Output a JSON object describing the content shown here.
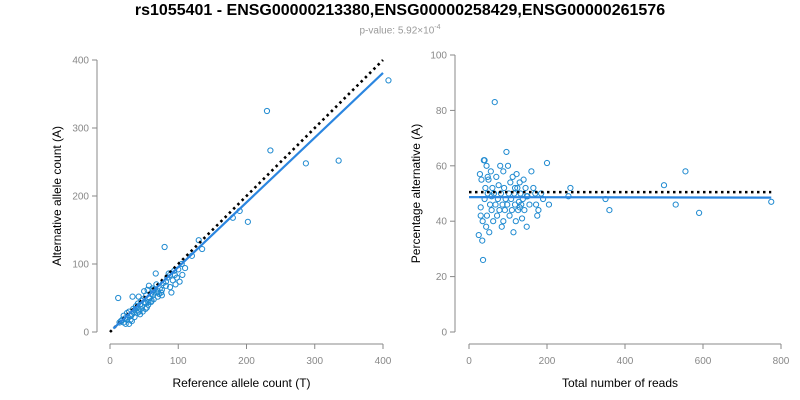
{
  "title": "rs1055401 - ENSG00000213380,ENSG00000258429,ENSG00000261576",
  "subtitle": {
    "prefix": "p-value: 5.92×10",
    "exponent": "-4"
  },
  "colors": {
    "points": "#1f8ad0",
    "fit": "#2b86e0",
    "reference_line": "#000000",
    "axis": "#888888"
  },
  "chart_data": [
    {
      "type": "scatter",
      "xlabel": "Reference allele count (T)",
      "ylabel": "Alternative allele count (A)",
      "xlim": [
        0,
        400
      ],
      "ylim": [
        0,
        400
      ],
      "xticks": [
        0,
        100,
        200,
        300,
        400
      ],
      "yticks": [
        0,
        100,
        200,
        300,
        400
      ],
      "fit_line": {
        "from": [
          5,
          5
        ],
        "to": [
          400,
          381
        ]
      },
      "reference_line": {
        "from": [
          0,
          0
        ],
        "to": [
          400,
          400
        ]
      },
      "points": [
        [
          12,
          50
        ],
        [
          14,
          14
        ],
        [
          16,
          16
        ],
        [
          18,
          18
        ],
        [
          20,
          24
        ],
        [
          22,
          20
        ],
        [
          23,
          12
        ],
        [
          25,
          28
        ],
        [
          26,
          22
        ],
        [
          28,
          30
        ],
        [
          30,
          18
        ],
        [
          31,
          24
        ],
        [
          32,
          26
        ],
        [
          33,
          52
        ],
        [
          34,
          34
        ],
        [
          35,
          28
        ],
        [
          36,
          32
        ],
        [
          38,
          38
        ],
        [
          40,
          36
        ],
        [
          41,
          42
        ],
        [
          42,
          52
        ],
        [
          43,
          30
        ],
        [
          44,
          40
        ],
        [
          45,
          34
        ],
        [
          46,
          46
        ],
        [
          47,
          38
        ],
        [
          48,
          48
        ],
        [
          50,
          60
        ],
        [
          51,
          44
        ],
        [
          52,
          42
        ],
        [
          53,
          54
        ],
        [
          54,
          36
        ],
        [
          55,
          62
        ],
        [
          56,
          44
        ],
        [
          57,
          68
        ],
        [
          58,
          50
        ],
        [
          60,
          56
        ],
        [
          61,
          46
        ],
        [
          62,
          64
        ],
        [
          63,
          54
        ],
        [
          64,
          62
        ],
        [
          65,
          58
        ],
        [
          67,
          86
        ],
        [
          68,
          70
        ],
        [
          69,
          58
        ],
        [
          70,
          52
        ],
        [
          72,
          56
        ],
        [
          73,
          64
        ],
        [
          75,
          58
        ],
        [
          76,
          62
        ],
        [
          78,
          72
        ],
        [
          80,
          125
        ],
        [
          82,
          68
        ],
        [
          84,
          80
        ],
        [
          86,
          86
        ],
        [
          88,
          84
        ],
        [
          90,
          58
        ],
        [
          92,
          76
        ],
        [
          94,
          90
        ],
        [
          96,
          70
        ],
        [
          98,
          80
        ],
        [
          100,
          92
        ],
        [
          102,
          74
        ],
        [
          106,
          84
        ],
        [
          110,
          94
        ],
        [
          120,
          112
        ],
        [
          130,
          135
        ],
        [
          135,
          122
        ],
        [
          180,
          168
        ],
        [
          190,
          178
        ],
        [
          202,
          162
        ],
        [
          230,
          325
        ],
        [
          235,
          267
        ],
        [
          287,
          248
        ],
        [
          335,
          252
        ],
        [
          408,
          370
        ],
        [
          20,
          14
        ],
        [
          25,
          18
        ],
        [
          28,
          12
        ],
        [
          32,
          16
        ],
        [
          36,
          22
        ],
        [
          40,
          28
        ],
        [
          44,
          26
        ],
        [
          48,
          30
        ],
        [
          52,
          34
        ],
        [
          56,
          40
        ],
        [
          60,
          44
        ],
        [
          64,
          48
        ],
        [
          70,
          60
        ],
        [
          76,
          54
        ],
        [
          82,
          74
        ],
        [
          88,
          66
        ],
        [
          95,
          84
        ],
        [
          105,
          100
        ]
      ]
    },
    {
      "type": "scatter",
      "xlabel": "Total number of reads",
      "ylabel": "Percentage alternative (A)",
      "xlim": [
        0,
        800
      ],
      "ylim": [
        0,
        100
      ],
      "xticks": [
        0,
        200,
        400,
        600,
        800
      ],
      "yticks": [
        0,
        20,
        40,
        60,
        80,
        100
      ],
      "fit_line": {
        "from": [
          0,
          48.7
        ],
        "to": [
          775,
          48.5
        ]
      },
      "reference_line": {
        "from": [
          0,
          50.5
        ],
        "to": [
          775,
          50.5
        ]
      },
      "points": [
        [
          25,
          35
        ],
        [
          28,
          57
        ],
        [
          30,
          45
        ],
        [
          32,
          55
        ],
        [
          34,
          33
        ],
        [
          35,
          40
        ],
        [
          36,
          26
        ],
        [
          38,
          62
        ],
        [
          40,
          48
        ],
        [
          40,
          62
        ],
        [
          42,
          52
        ],
        [
          44,
          38
        ],
        [
          45,
          60
        ],
        [
          46,
          42
        ],
        [
          48,
          50
        ],
        [
          50,
          55
        ],
        [
          52,
          36
        ],
        [
          54,
          46
        ],
        [
          56,
          58
        ],
        [
          58,
          44
        ],
        [
          60,
          52
        ],
        [
          62,
          40
        ],
        [
          64,
          50
        ],
        [
          66,
          83
        ],
        [
          68,
          46
        ],
        [
          70,
          56
        ],
        [
          72,
          42
        ],
        [
          74,
          48
        ],
        [
          76,
          53
        ],
        [
          78,
          44
        ],
        [
          80,
          60
        ],
        [
          82,
          50
        ],
        [
          84,
          38
        ],
        [
          86,
          46
        ],
        [
          88,
          58
        ],
        [
          90,
          52
        ],
        [
          92,
          44
        ],
        [
          94,
          48
        ],
        [
          96,
          65
        ],
        [
          98,
          46
        ],
        [
          100,
          60
        ],
        [
          102,
          50
        ],
        [
          104,
          42
        ],
        [
          106,
          54
        ],
        [
          108,
          48
        ],
        [
          110,
          44
        ],
        [
          112,
          56
        ],
        [
          114,
          36
        ],
        [
          116,
          50
        ],
        [
          118,
          46
        ],
        [
          120,
          40
        ],
        [
          122,
          57
        ],
        [
          124,
          52
        ],
        [
          126,
          44
        ],
        [
          128,
          47
        ],
        [
          130,
          54
        ],
        [
          132,
          50
        ],
        [
          134,
          46
        ],
        [
          136,
          41
        ],
        [
          138,
          48
        ],
        [
          140,
          55
        ],
        [
          142,
          44
        ],
        [
          145,
          52
        ],
        [
          148,
          38
        ],
        [
          150,
          49
        ],
        [
          155,
          46
        ],
        [
          160,
          58
        ],
        [
          165,
          52
        ],
        [
          170,
          50
        ],
        [
          175,
          42
        ],
        [
          178,
          44
        ],
        [
          185,
          50
        ],
        [
          190,
          48
        ],
        [
          200,
          61
        ],
        [
          205,
          46
        ],
        [
          255,
          49
        ],
        [
          260,
          52
        ],
        [
          350,
          48
        ],
        [
          360,
          44
        ],
        [
          500,
          53
        ],
        [
          530,
          46
        ],
        [
          555,
          58
        ],
        [
          590,
          43
        ],
        [
          775,
          47
        ],
        [
          30,
          42
        ],
        [
          48,
          56
        ],
        [
          58,
          49
        ],
        [
          88,
          40
        ],
        [
          118,
          52
        ],
        [
          130,
          45
        ],
        [
          148,
          49
        ],
        [
          172,
          46
        ]
      ]
    }
  ]
}
